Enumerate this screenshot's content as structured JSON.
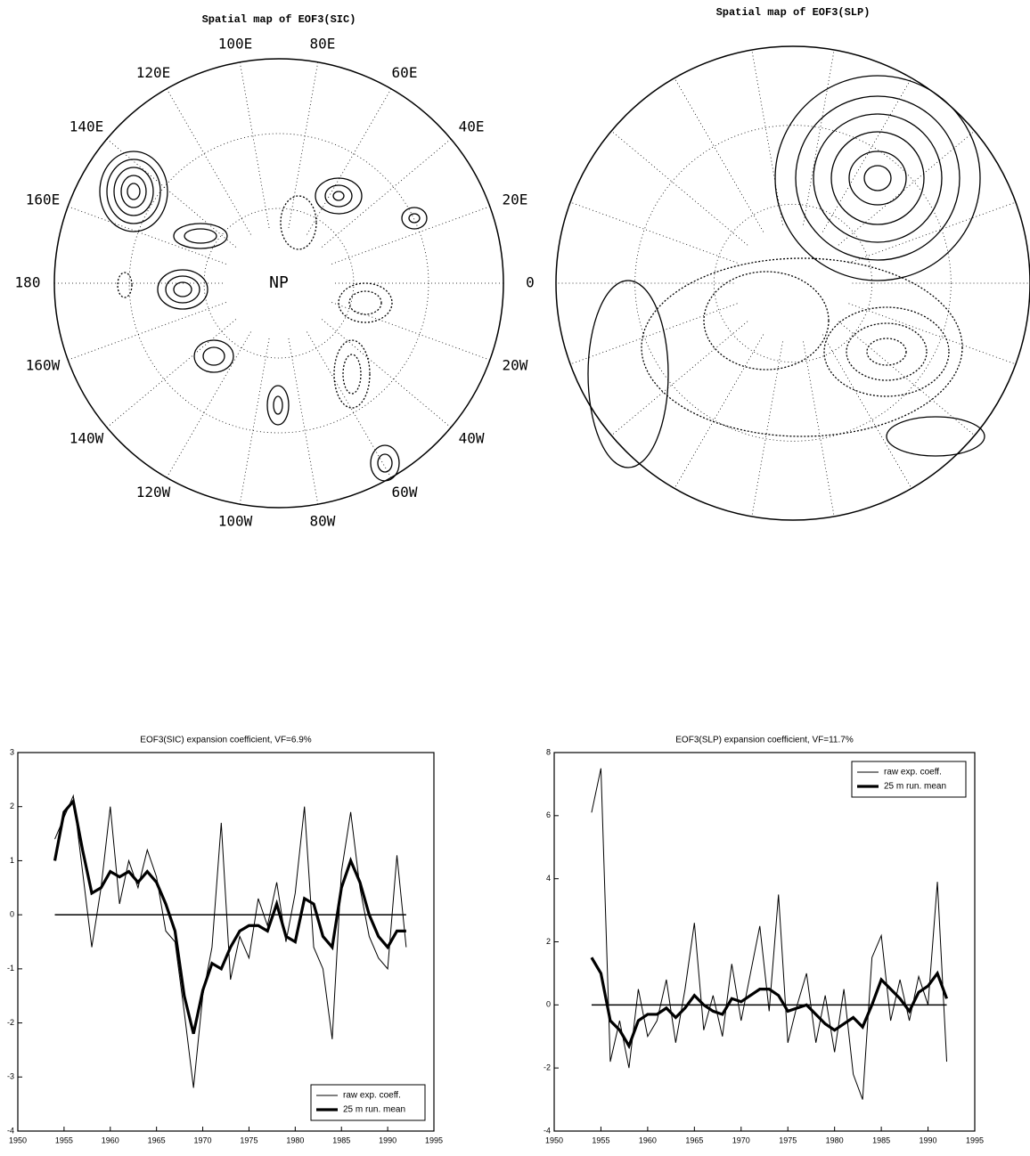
{
  "chart_data": [
    {
      "type": "polar-map",
      "title": "Spatial map of EOF3(SIC)",
      "center_label": "NP",
      "lon_labels": [
        "100E",
        "80E",
        "60E",
        "40E",
        "20E",
        "0",
        "20W",
        "40W",
        "60W",
        "80W",
        "100W",
        "120W",
        "140W",
        "160W",
        "180",
        "160E",
        "140E",
        "120E"
      ]
    },
    {
      "type": "polar-map",
      "title": "Spatial map of EOF3(SLP)"
    },
    {
      "type": "line",
      "title": "EOF3(SIC) expansion coefficient, VF=6.9%",
      "x": [
        1954,
        1955,
        1956,
        1957,
        1958,
        1959,
        1960,
        1961,
        1962,
        1963,
        1964,
        1965,
        1966,
        1967,
        1968,
        1969,
        1970,
        1971,
        1972,
        1973,
        1974,
        1975,
        1976,
        1977,
        1978,
        1979,
        1980,
        1981,
        1982,
        1983,
        1984,
        1985,
        1986,
        1987,
        1988,
        1989,
        1990,
        1991,
        1992
      ],
      "series": [
        {
          "name": "raw exp. coeff.",
          "color": "#000000",
          "values": [
            1.4,
            1.8,
            2.2,
            0.8,
            -0.6,
            0.5,
            2.0,
            0.2,
            1.0,
            0.5,
            1.2,
            0.7,
            -0.3,
            -0.5,
            -1.8,
            -3.2,
            -1.5,
            -0.6,
            1.7,
            -1.2,
            -0.4,
            -0.8,
            0.3,
            -0.2,
            0.6,
            -0.5,
            0.4,
            2.0,
            -0.6,
            -1.0,
            -2.3,
            0.8,
            1.9,
            0.5,
            -0.4,
            -0.8,
            -1.0,
            1.1,
            -0.6
          ]
        },
        {
          "name": "25 m run. mean",
          "color": "#000000",
          "values": [
            1.0,
            1.9,
            2.1,
            1.2,
            0.4,
            0.5,
            0.8,
            0.7,
            0.8,
            0.6,
            0.8,
            0.6,
            0.2,
            -0.3,
            -1.5,
            -2.2,
            -1.4,
            -0.9,
            -1.0,
            -0.6,
            -0.3,
            -0.2,
            -0.2,
            -0.3,
            0.2,
            -0.4,
            -0.5,
            0.3,
            0.2,
            -0.4,
            -0.6,
            0.5,
            1.0,
            0.6,
            0.0,
            -0.4,
            -0.6,
            -0.3,
            -0.3
          ]
        }
      ],
      "xlim": [
        1950,
        1995
      ],
      "xticks": [
        1950,
        1955,
        1960,
        1965,
        1970,
        1975,
        1980,
        1985,
        1990,
        1995
      ],
      "ylim": [
        -4,
        3
      ],
      "yticks": [
        -4,
        -3,
        -2,
        -1,
        0,
        1,
        2,
        3
      ],
      "hline": 0,
      "legend": "lower right"
    },
    {
      "type": "line",
      "title": "EOF3(SLP) expansion coefficient, VF=11.7%",
      "x": [
        1954,
        1955,
        1956,
        1957,
        1958,
        1959,
        1960,
        1961,
        1962,
        1963,
        1964,
        1965,
        1966,
        1967,
        1968,
        1969,
        1970,
        1971,
        1972,
        1973,
        1974,
        1975,
        1976,
        1977,
        1978,
        1979,
        1980,
        1981,
        1982,
        1983,
        1984,
        1985,
        1986,
        1987,
        1988,
        1989,
        1990,
        1991,
        1992
      ],
      "series": [
        {
          "name": "raw exp. coeff.",
          "color": "#000000",
          "values": [
            6.1,
            7.5,
            -1.8,
            -0.5,
            -2.0,
            0.5,
            -1.0,
            -0.5,
            0.8,
            -1.2,
            0.5,
            2.6,
            -0.8,
            0.3,
            -1.0,
            1.3,
            -0.5,
            1.0,
            2.5,
            -0.2,
            3.5,
            -1.2,
            0.0,
            1.0,
            -1.2,
            0.3,
            -1.5,
            0.5,
            -2.2,
            -3.0,
            1.5,
            2.2,
            -0.5,
            0.8,
            -0.5,
            0.9,
            0.0,
            3.9,
            -1.8
          ]
        },
        {
          "name": "25 m run. mean",
          "color": "#000000",
          "values": [
            1.5,
            1.0,
            -0.5,
            -0.8,
            -1.3,
            -0.5,
            -0.3,
            -0.3,
            -0.1,
            -0.4,
            -0.1,
            0.3,
            0.0,
            -0.2,
            -0.3,
            0.2,
            0.1,
            0.3,
            0.5,
            0.5,
            0.3,
            -0.2,
            -0.1,
            0.0,
            -0.3,
            -0.6,
            -0.8,
            -0.6,
            -0.4,
            -0.7,
            0.0,
            0.8,
            0.5,
            0.2,
            -0.2,
            0.4,
            0.6,
            1.0,
            0.2
          ]
        }
      ],
      "xlim": [
        1950,
        1995
      ],
      "xticks": [
        1950,
        1955,
        1960,
        1965,
        1970,
        1975,
        1980,
        1985,
        1990,
        1995
      ],
      "ylim": [
        -4,
        8
      ],
      "yticks": [
        -4,
        -2,
        0,
        2,
        4,
        6,
        8
      ],
      "hline": 0,
      "legend": "upper right"
    }
  ]
}
